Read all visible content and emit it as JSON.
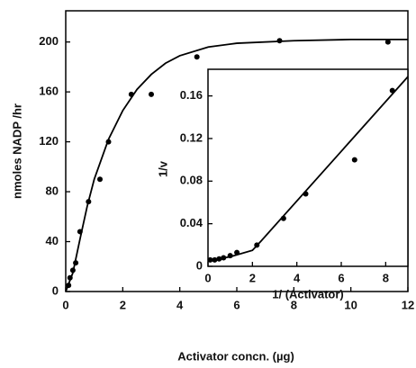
{
  "chart_data": [
    {
      "type": "scatter",
      "xlabel": "Activator concn. (µg)",
      "ylabel": "nmoles  NADP /hr",
      "xlim": [
        0,
        12
      ],
      "ylim": [
        0,
        225
      ],
      "xticks": [
        0,
        2,
        4,
        6,
        8,
        10,
        12
      ],
      "yticks": [
        0,
        40,
        80,
        120,
        160,
        200
      ],
      "series": [
        {
          "style": "points",
          "color": "#000000",
          "x": [
            0.1,
            0.15,
            0.25,
            0.35,
            0.5,
            0.8,
            1.2,
            1.5,
            2.3,
            3.0,
            4.6,
            7.5,
            11.3
          ],
          "values": [
            5,
            11,
            17,
            23,
            48,
            72,
            90,
            120,
            158,
            158,
            188,
            201,
            200
          ]
        },
        {
          "style": "line",
          "color": "#000000",
          "x": [
            0,
            0.25,
            0.5,
            0.75,
            1,
            1.5,
            2,
            2.5,
            3,
            3.5,
            4,
            5,
            6,
            8,
            10,
            12
          ],
          "values": [
            0,
            15,
            42,
            68,
            90,
            122,
            145,
            162,
            174,
            183,
            189,
            196,
            199,
            201,
            202,
            202
          ]
        }
      ]
    },
    {
      "type": "scatter",
      "xlabel": "1/ (Activator)",
      "ylabel": "1/v",
      "xlim": [
        0,
        9
      ],
      "ylim": [
        0,
        0.185
      ],
      "xticks": [
        0,
        2,
        4,
        6,
        8
      ],
      "yticks": [
        0,
        0.04,
        0.08,
        0.12,
        0.16
      ],
      "series": [
        {
          "style": "points",
          "color": "#000000",
          "x": [
            0.1,
            0.3,
            0.5,
            0.7,
            1.0,
            1.3,
            2.2,
            3.4,
            4.4,
            6.6,
            8.3
          ],
          "values": [
            0.006,
            0.006,
            0.007,
            0.008,
            0.01,
            0.013,
            0.02,
            0.045,
            0.068,
            0.1,
            0.165
          ]
        },
        {
          "style": "line",
          "color": "#000000",
          "x": [
            0,
            1,
            2,
            2.4,
            9
          ],
          "values": [
            0.005,
            0.009,
            0.015,
            0.024,
            0.178
          ]
        }
      ]
    }
  ]
}
